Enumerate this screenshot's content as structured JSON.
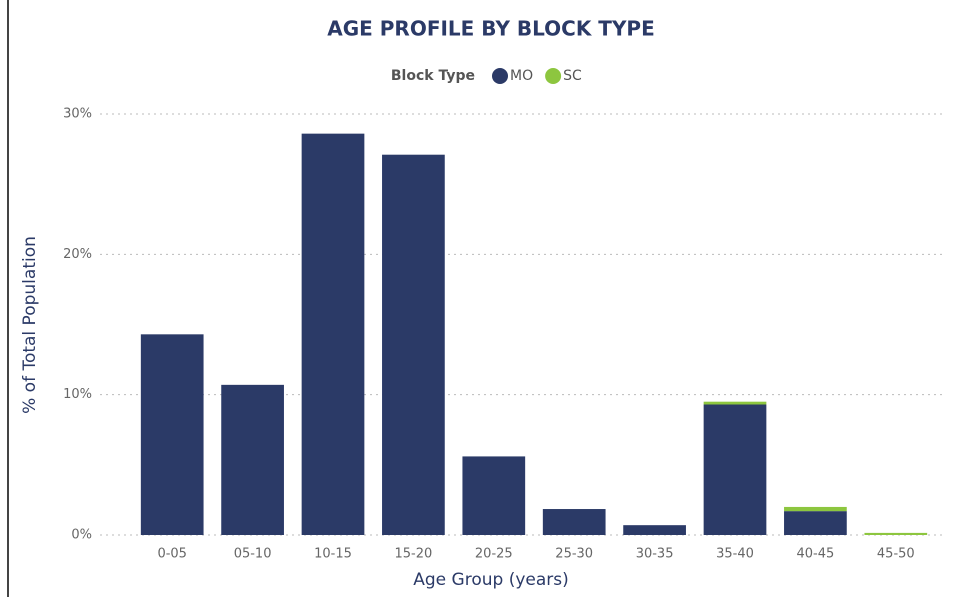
{
  "chart_data": {
    "type": "stacked_bar",
    "title": "AGE PROFILE BY BLOCK TYPE",
    "legend_title": "Block Type",
    "x_label": "Age Group (years)",
    "y_label": "% of Total Population",
    "categories": [
      "0-05",
      "05-10",
      "10-15",
      "15-20",
      "20-25",
      "25-30",
      "30-35",
      "35-40",
      "40-45",
      "45-50"
    ],
    "series": [
      {
        "name": "MO",
        "color": "#2b3a67",
        "values": [
          14.3,
          10.7,
          28.6,
          27.1,
          5.6,
          1.85,
          0.7,
          9.3,
          1.7,
          0
        ]
      },
      {
        "name": "SC",
        "color": "#8dc63f",
        "values": [
          0,
          0,
          0,
          0,
          0,
          0,
          0,
          0.2,
          0.3,
          0.15
        ]
      }
    ],
    "ylim": [
      0,
      30
    ],
    "yticks": [
      {
        "value": 0,
        "label": "0%"
      },
      {
        "value": 10,
        "label": "10%"
      },
      {
        "value": 20,
        "label": "20%"
      },
      {
        "value": 30,
        "label": "30%"
      }
    ],
    "grid": true
  }
}
